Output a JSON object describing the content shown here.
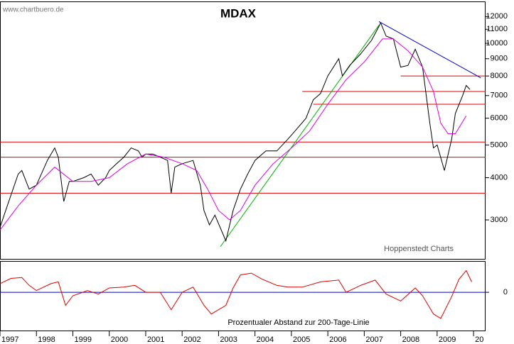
{
  "source": "www.chartbuero.de",
  "chart_data": [
    {
      "type": "line",
      "title": "MDAX",
      "annotation": "Hoppenstedt Charts",
      "yscale": "log",
      "xlim": [
        1997,
        2010.33
      ],
      "ylim": [
        2300,
        13300
      ],
      "yticks": [
        3000,
        4000,
        5000,
        6000,
        7000,
        8000,
        9000,
        10000,
        11000,
        12000
      ],
      "series": [
        {
          "color": "#000000",
          "x": [
            1997.0,
            1997.2,
            1997.5,
            1997.6,
            1997.8,
            1998.0,
            1998.3,
            1998.5,
            1998.6,
            1998.75,
            1998.9,
            1999.0,
            1999.3,
            1999.5,
            1999.7,
            1999.9,
            2000.0,
            2000.2,
            2000.4,
            2000.6,
            2000.8,
            2000.9,
            2001.0,
            2001.2,
            2001.4,
            2001.6,
            2001.7,
            2001.8,
            2002.0,
            2002.3,
            2002.5,
            2002.6,
            2002.75,
            2002.9,
            2003.2,
            2003.4,
            2003.6,
            2003.8,
            2004.0,
            2004.3,
            2004.6,
            2004.9,
            2005.1,
            2005.4,
            2005.6,
            2005.8,
            2006.0,
            2006.3,
            2006.4,
            2006.6,
            2006.9,
            2007.2,
            2007.4,
            2007.45,
            2007.6,
            2007.8,
            2008.0,
            2008.2,
            2008.4,
            2008.6,
            2008.8,
            2008.9,
            2009.0,
            2009.2,
            2009.4,
            2009.5,
            2009.7,
            2009.8,
            2009.9
          ],
          "values": [
            2850,
            3300,
            4100,
            4200,
            3700,
            3800,
            4500,
            4900,
            4600,
            3400,
            3900,
            3900,
            4000,
            4100,
            3800,
            4000,
            4200,
            4400,
            4600,
            4900,
            4800,
            4600,
            4700,
            4700,
            4600,
            4500,
            3600,
            4300,
            4400,
            4500,
            3800,
            3200,
            2900,
            3100,
            2600,
            3200,
            3700,
            4100,
            4500,
            4800,
            4800,
            5200,
            5500,
            6000,
            6800,
            7100,
            8000,
            9000,
            8000,
            8600,
            9300,
            10200,
            11200,
            11500,
            10500,
            10300,
            8500,
            8600,
            9600,
            8500,
            5800,
            4900,
            5000,
            4200,
            5200,
            6200,
            7000,
            7500,
            7300
          ]
        },
        {
          "color": "#e000e0",
          "x": [
            1997.0,
            1997.5,
            1998.0,
            1998.5,
            1999.0,
            1999.5,
            2000.0,
            2000.5,
            2001.0,
            2001.5,
            2002.0,
            2002.4,
            2002.7,
            2003.0,
            2003.3,
            2003.6,
            2004.0,
            2004.5,
            2005.0,
            2005.5,
            2006.0,
            2006.5,
            2007.0,
            2007.5,
            2007.8,
            2008.2,
            2008.6,
            2008.9,
            2009.1,
            2009.3,
            2009.5,
            2009.8
          ],
          "values": [
            2800,
            3300,
            3800,
            4300,
            3900,
            3900,
            4000,
            4400,
            4700,
            4600,
            4400,
            4200,
            3700,
            3200,
            3000,
            3200,
            3800,
            4400,
            4900,
            5500,
            6600,
            7800,
            8800,
            10300,
            10300,
            9500,
            8500,
            7200,
            5800,
            5400,
            5400,
            6100
          ]
        }
      ],
      "hlines": [
        {
          "y": 8000,
          "x": [
            2008.0,
            2010.33
          ]
        },
        {
          "y": 7200,
          "x": [
            2005.3,
            2010.33
          ]
        },
        {
          "y": 6600,
          "x": [
            2005.6,
            2010.33
          ]
        },
        {
          "y": 5100,
          "x": [
            1997,
            2010.33
          ]
        },
        {
          "y": 4600,
          "x": [
            1997,
            2010.33
          ]
        },
        {
          "y": 3600,
          "x": [
            1997,
            2010.33
          ]
        }
      ],
      "hline_color": "#e00000",
      "trendlines": [
        {
          "color": "#00b000",
          "x": [
            2003.05,
            2007.4
          ],
          "y": [
            2500,
            11300
          ]
        },
        {
          "color": "#0000cc",
          "x": [
            2007.4,
            2010.2
          ],
          "y": [
            11600,
            7900
          ]
        }
      ]
    },
    {
      "type": "line",
      "title": "Prozentualer Abstand zur 200-Tage-Linie",
      "xlim": [
        1997,
        2010.33
      ],
      "ylim": [
        -44,
        36
      ],
      "yticks": [
        0
      ],
      "zero_color": "#0000cc",
      "xticks": [
        1997,
        1998,
        1999,
        2000,
        2001,
        2002,
        2003,
        2004,
        2005,
        2006,
        2007,
        2008,
        2009,
        {
          "value": 2010,
          "label": "20"
        }
      ],
      "series": [
        {
          "color": "#e00000",
          "x": [
            1997.0,
            1997.3,
            1997.6,
            1997.8,
            1998.0,
            1998.4,
            1998.6,
            1998.8,
            1999.0,
            1999.4,
            1999.7,
            2000.0,
            2000.4,
            2000.7,
            2001.0,
            2001.4,
            2001.7,
            2002.0,
            2002.3,
            2002.6,
            2002.8,
            2003.2,
            2003.4,
            2003.6,
            2003.9,
            2004.2,
            2004.6,
            2004.9,
            2005.3,
            2005.8,
            2006.3,
            2006.5,
            2006.9,
            2007.3,
            2007.6,
            2008.0,
            2008.4,
            2008.6,
            2008.9,
            2009.1,
            2009.4,
            2009.6,
            2009.8,
            2009.95
          ],
          "values": [
            10,
            16,
            17,
            8,
            2,
            10,
            12,
            -15,
            -4,
            2,
            -2,
            5,
            6,
            8,
            0,
            0,
            -20,
            0,
            6,
            -15,
            -25,
            -15,
            5,
            20,
            22,
            15,
            8,
            6,
            6,
            12,
            14,
            0,
            8,
            14,
            -2,
            -10,
            5,
            -4,
            -25,
            -30,
            -5,
            15,
            25,
            12
          ]
        }
      ]
    }
  ]
}
